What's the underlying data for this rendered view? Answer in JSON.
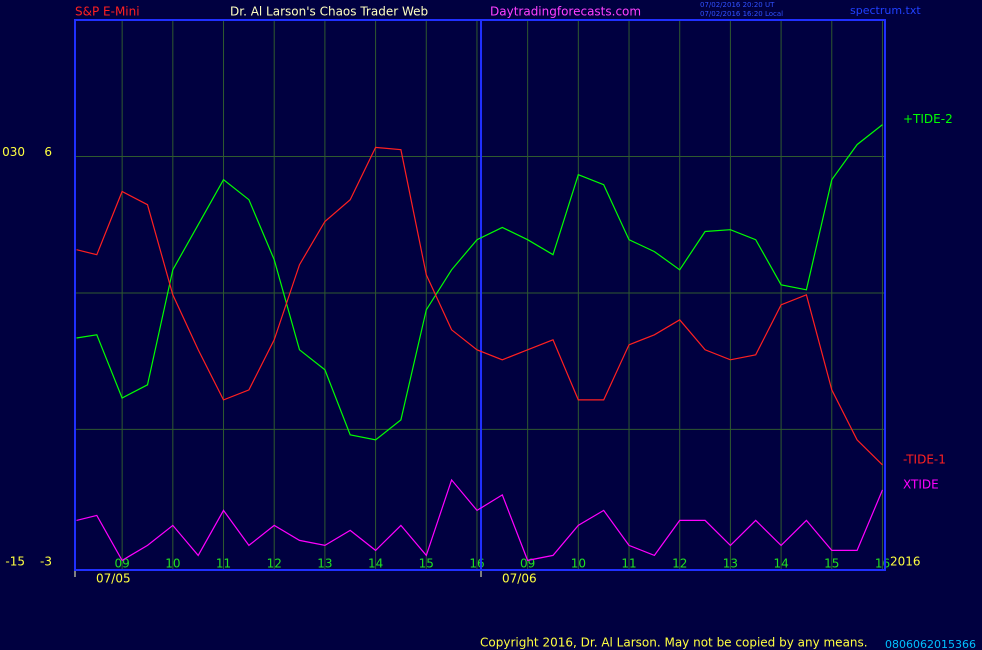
{
  "header": {
    "symbol": "S&P E-Mini",
    "site": "Dr. Al Larson's Chaos Trader Web",
    "url": "Daytradingforecasts.com",
    "times": [
      "07/02/2016 20:20 UT",
      "07/02/2016 16:20 Local"
    ],
    "file": "spectrum.txt"
  },
  "footer": {
    "copyright": "Copyright 2016, Dr. Al Larson. May not be copied by any means.",
    "code": "0806062015366"
  },
  "chart_data": {
    "type": "line",
    "x": [
      -0.9,
      -0.5,
      0,
      0.5,
      1,
      1.5,
      2,
      2.5,
      3,
      3.5,
      4,
      4.5,
      5,
      5.5,
      6,
      6.5,
      7,
      7.5,
      8,
      8.5,
      9,
      9.5,
      10,
      10.5,
      11,
      11.5,
      12,
      12.5,
      13,
      13.5,
      14,
      14.5,
      15
    ],
    "series": [
      {
        "name": "+TIDE-2",
        "color": "#00ff00",
        "values": [
          2.01,
          2.08,
          0.69,
          0.98,
          3.51,
          4.5,
          5.49,
          5.05,
          3.73,
          1.75,
          1.31,
          -0.12,
          -0.23,
          0.21,
          2.63,
          3.51,
          4.17,
          4.44,
          4.17,
          3.84,
          5.6,
          5.38,
          4.17,
          3.91,
          3.51,
          4.35,
          4.39,
          4.17,
          3.18,
          3.07,
          5.49,
          6.26,
          6.7
        ]
      },
      {
        "name": "-TIDE-1",
        "color": "#ff2020",
        "values": [
          3.95,
          3.84,
          5.23,
          4.94,
          2.96,
          1.75,
          0.65,
          0.87,
          1.97,
          3.62,
          4.57,
          5.05,
          6.2,
          6.15,
          3.4,
          2.19,
          1.75,
          1.53,
          1.75,
          1.97,
          0.65,
          0.65,
          1.86,
          2.08,
          2.41,
          1.75,
          1.53,
          1.64,
          2.74,
          2.96,
          0.87,
          -0.23,
          -0.78
        ]
      },
      {
        "name": "XTIDE",
        "color": "#ff00ff",
        "values": [
          -2.0,
          -1.89,
          -2.88,
          -2.55,
          -2.11,
          -2.77,
          -1.78,
          -2.55,
          -2.11,
          -2.44,
          -2.55,
          -2.22,
          -2.66,
          -2.11,
          -2.77,
          -1.11,
          -1.78,
          -1.44,
          -2.88,
          -2.77,
          -2.11,
          -1.78,
          -2.55,
          -2.77,
          -2.0,
          -2.0,
          -2.55,
          -2.0,
          -2.55,
          -2.0,
          -2.66,
          -2.66,
          -1.33
        ]
      }
    ],
    "xlim": [
      -0.93,
      15.05
    ],
    "xticks": [
      {
        "value": 0,
        "label": "09"
      },
      {
        "value": 1,
        "label": "10"
      },
      {
        "value": 2,
        "label": "11"
      },
      {
        "value": 3,
        "label": "12"
      },
      {
        "value": 4,
        "label": "13"
      },
      {
        "value": 5,
        "label": "14"
      },
      {
        "value": 6,
        "label": "15"
      },
      {
        "value": 7,
        "label": "16"
      },
      {
        "value": 8,
        "label": "09"
      },
      {
        "value": 9,
        "label": "10"
      },
      {
        "value": 10,
        "label": "11"
      },
      {
        "value": 11,
        "label": "12"
      },
      {
        "value": 12,
        "label": "13"
      },
      {
        "value": 13,
        "label": "14"
      },
      {
        "value": 14,
        "label": "15"
      },
      {
        "value": 15,
        "label": "16"
      }
    ],
    "dates": [
      {
        "value": -0.93,
        "label": "07/05"
      },
      {
        "value": 7.08,
        "label": "07/06"
      }
    ],
    "year": "2016",
    "ylim": [
      -3.09,
      9
    ],
    "yticks": [
      -3,
      6
    ],
    "ygrid": [
      0,
      3,
      6
    ],
    "y2lim": [
      -15.45,
      45
    ],
    "y2ticks": [
      -15,
      {
        "value": 30,
        "label": "030"
      }
    ]
  }
}
